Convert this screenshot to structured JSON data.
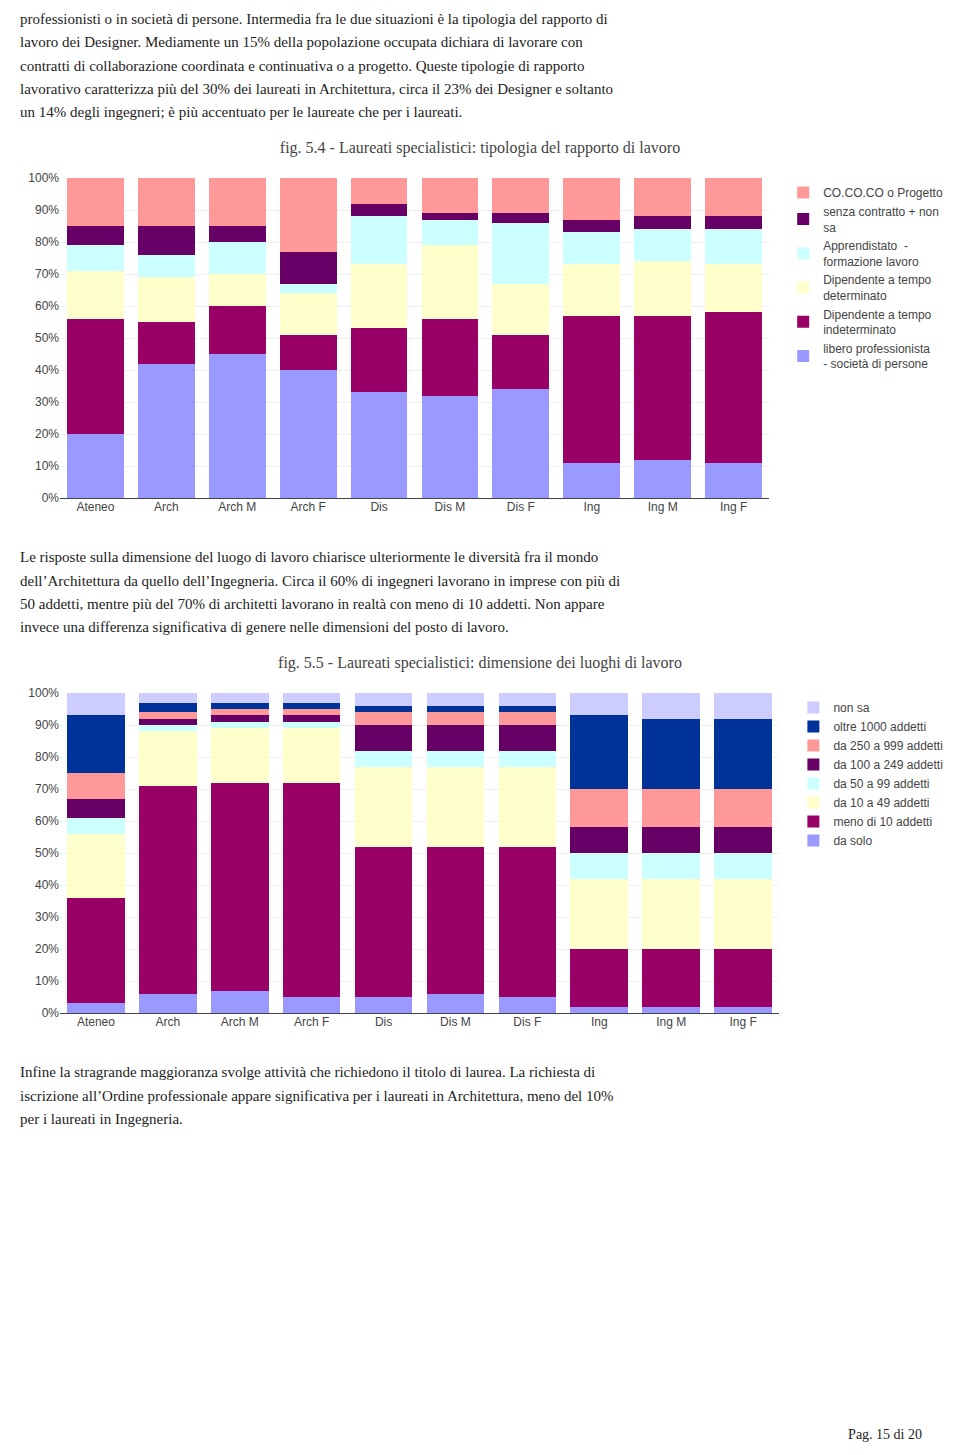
{
  "chart_data": [
    {
      "type": "bar",
      "title": "fig. 5.4 - Laureati specialistici: tipologia del rapporto di lavoro",
      "categories": [
        "Ateneo",
        "Arch",
        "Arch M",
        "Arch F",
        "Dis",
        "Dis M",
        "Dis F",
        "Ing",
        "Ing M",
        "Ing F"
      ],
      "series": [
        {
          "name": "libero professionista\n- società di persone",
          "color": "#9999FF",
          "values": [
            20,
            42,
            45,
            40,
            33,
            32,
            34,
            11,
            12,
            11
          ]
        },
        {
          "name": "Dipendente a tempo\nindeterminato",
          "color": "#990066",
          "values": [
            36,
            13,
            15,
            11,
            20,
            24,
            17,
            46,
            45,
            47
          ]
        },
        {
          "name": "Dipendente a tempo\ndeterminato",
          "color": "#FFFFCC",
          "values": [
            15,
            14,
            10,
            13,
            20,
            23,
            16,
            16,
            17,
            15
          ]
        },
        {
          "name": "Apprendistato  -\nformazione lavoro",
          "color": "#CCFFFF",
          "values": [
            8,
            7,
            10,
            3,
            15,
            8,
            19,
            10,
            10,
            11
          ]
        },
        {
          "name": "senza contratto + non\nsa",
          "color": "#660066",
          "values": [
            6,
            9,
            5,
            10,
            4,
            2,
            3,
            4,
            4,
            4
          ]
        },
        {
          "name": "CO.CO.CO o Progetto",
          "color": "#FF9999",
          "values": [
            15,
            15,
            15,
            23,
            8,
            11,
            11,
            13,
            12,
            12
          ]
        }
      ],
      "stacked": true,
      "ylim": [
        0,
        100
      ],
      "yticks": [
        {
          "value": 0,
          "label": "0%"
        },
        {
          "value": 10,
          "label": "10%"
        },
        {
          "value": 20,
          "label": "20%"
        },
        {
          "value": 30,
          "label": "30%"
        },
        {
          "value": 40,
          "label": "40%"
        },
        {
          "value": 50,
          "label": "50%"
        },
        {
          "value": 60,
          "label": "60%"
        },
        {
          "value": 70,
          "label": "70%"
        },
        {
          "value": 80,
          "label": "80%"
        },
        {
          "value": 90,
          "label": "90%"
        },
        {
          "value": 100,
          "label": "100%"
        }
      ],
      "grid": true,
      "legend": "right"
    },
    {
      "type": "bar",
      "title": "fig. 5.5 - Laureati specialistici: dimensione dei luoghi di lavoro",
      "categories": [
        "Ateneo",
        "Arch",
        "Arch M",
        "Arch F",
        "Dis",
        "Dis M",
        "Dis F",
        "Ing",
        "Ing M",
        "Ing F"
      ],
      "series": [
        {
          "name": "da solo",
          "color": "#9999FF",
          "values": [
            3,
            6,
            7,
            5,
            5,
            6,
            5,
            2,
            2,
            2
          ]
        },
        {
          "name": "meno di 10 addetti",
          "color": "#990066",
          "values": [
            33,
            65,
            65,
            67,
            47,
            46,
            47,
            18,
            18,
            18
          ]
        },
        {
          "name": "da 10 a 49 addetti",
          "color": "#FFFFCC",
          "values": [
            20,
            17,
            17,
            17,
            25,
            25,
            25,
            22,
            22,
            22
          ]
        },
        {
          "name": "da 50 a 99 addetti",
          "color": "#CCFFFF",
          "values": [
            5,
            2,
            2,
            2,
            5,
            5,
            5,
            8,
            8,
            8
          ]
        },
        {
          "name": "da 100 a 249 addetti",
          "color": "#660066",
          "values": [
            6,
            2,
            2,
            2,
            8,
            8,
            8,
            8,
            8,
            8
          ]
        },
        {
          "name": "da 250 a 999 addetti",
          "color": "#FF9999",
          "values": [
            8,
            2,
            2,
            2,
            4,
            4,
            4,
            12,
            12,
            12
          ]
        },
        {
          "name": "oltre 1000 addetti",
          "color": "#003399",
          "values": [
            18,
            3,
            2,
            2,
            2,
            2,
            2,
            23,
            22,
            22
          ]
        },
        {
          "name": "non sa",
          "color": "#CCCCFF",
          "values": [
            7,
            3,
            3,
            3,
            4,
            4,
            4,
            7,
            8,
            8
          ]
        }
      ],
      "stacked": true,
      "ylim": [
        0,
        100
      ],
      "yticks": [
        {
          "value": 0,
          "label": "0%"
        },
        {
          "value": 10,
          "label": "10%"
        },
        {
          "value": 20,
          "label": "20%"
        },
        {
          "value": 30,
          "label": "30%"
        },
        {
          "value": 40,
          "label": "40%"
        },
        {
          "value": 50,
          "label": "50%"
        },
        {
          "value": 60,
          "label": "60%"
        },
        {
          "value": 70,
          "label": "70%"
        },
        {
          "value": 80,
          "label": "80%"
        },
        {
          "value": 90,
          "label": "90%"
        },
        {
          "value": 100,
          "label": "100%"
        }
      ],
      "grid": true,
      "legend": "right"
    }
  ],
  "annotations": [
    "professionisti o in società di persone. Intermedia fra le due situazioni è la tipologia del rapporto di\nlavoro dei Designer. Mediamente un 15% della popolazione occupata dichiara di lavorare con\ncontratti di collaborazione coordinata e continuativa o a progetto. Queste tipologie di rapporto\nlavorativo caratterizza più del 30% dei laureati in Architettura, circa il 23% dei Designer e soltanto\nun 14% degli ingegneri; è più accentuato per le laureate che per i laureati.",
    "Le risposte sulla dimensione del luogo di lavoro chiarisce ulteriormente le diversità fra il mondo\ndell’Architettura da quello dell’Ingegneria. Circa il 60% di ingegneri lavorano in imprese con più di\n50 addetti, mentre più del 70% di architetti lavorano in realtà con meno di 10 addetti. Non appare\ninvece una differenza significativa di genere nelle dimensioni del posto di lavoro.",
    "Infine la stragrande maggioranza svolge attività che richiedono il titolo di laurea. La richiesta di\niscrizione all’Ordine professionale appare significativa per i laureati in Architettura, meno del 10%\nper i laureati in Ingegneria.",
    "Pag. 15 di 20"
  ]
}
